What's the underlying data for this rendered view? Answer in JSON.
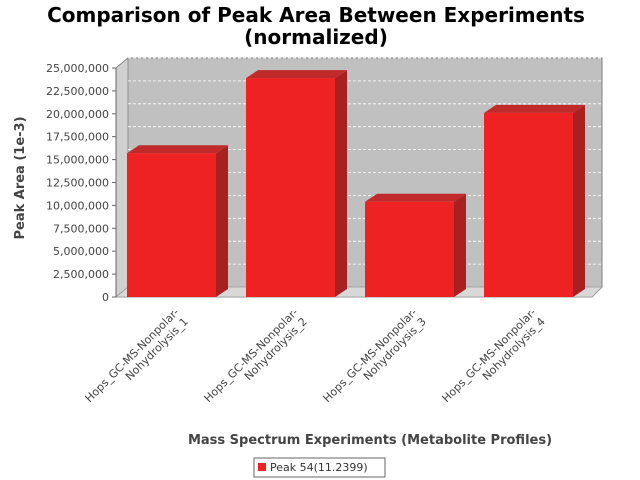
{
  "chart_data": {
    "type": "bar",
    "title_line1": "Comparison of Peak Area Between Experiments",
    "title_line2": "(normalized)",
    "xlabel": "Mass Spectrum Experiments (Metabolite Profiles)",
    "ylabel": "Peak Area (1e-3)",
    "categories": [
      [
        "Hops_GC-MS-Nonpolar-",
        "Nohydrolysis_1"
      ],
      [
        "Hops_GC-MS-Nonpolar-",
        "Nohydrolysis_2"
      ],
      [
        "Hops_GC-MS-Nonpolar-",
        "Nohydrolysis_3"
      ],
      [
        "Hops_GC-MS-Nonpolar-",
        "Nohydrolysis_4"
      ]
    ],
    "series": [
      {
        "name": "Peak 54(11.2399)",
        "color": "#ee2222",
        "values": [
          15700000,
          23900000,
          10400000,
          20100000
        ]
      }
    ],
    "ylim": [
      0,
      25000000
    ],
    "yticks": [
      {
        "v": 0,
        "label": "0"
      },
      {
        "v": 2500000,
        "label": "2,500,000"
      },
      {
        "v": 5000000,
        "label": "5,000,000"
      },
      {
        "v": 7500000,
        "label": "7,500,000"
      },
      {
        "v": 10000000,
        "label": "10,000,000"
      },
      {
        "v": 12500000,
        "label": "12,500,000"
      },
      {
        "v": 15000000,
        "label": "15,000,000"
      },
      {
        "v": 17500000,
        "label": "17,500,000"
      },
      {
        "v": 20000000,
        "label": "20,000,000"
      },
      {
        "v": 22500000,
        "label": "22,500,000"
      },
      {
        "v": 25000000,
        "label": "25,000,000"
      }
    ],
    "grid": true,
    "legend_position": "bottom",
    "plot_background": "#c0c0c0"
  }
}
